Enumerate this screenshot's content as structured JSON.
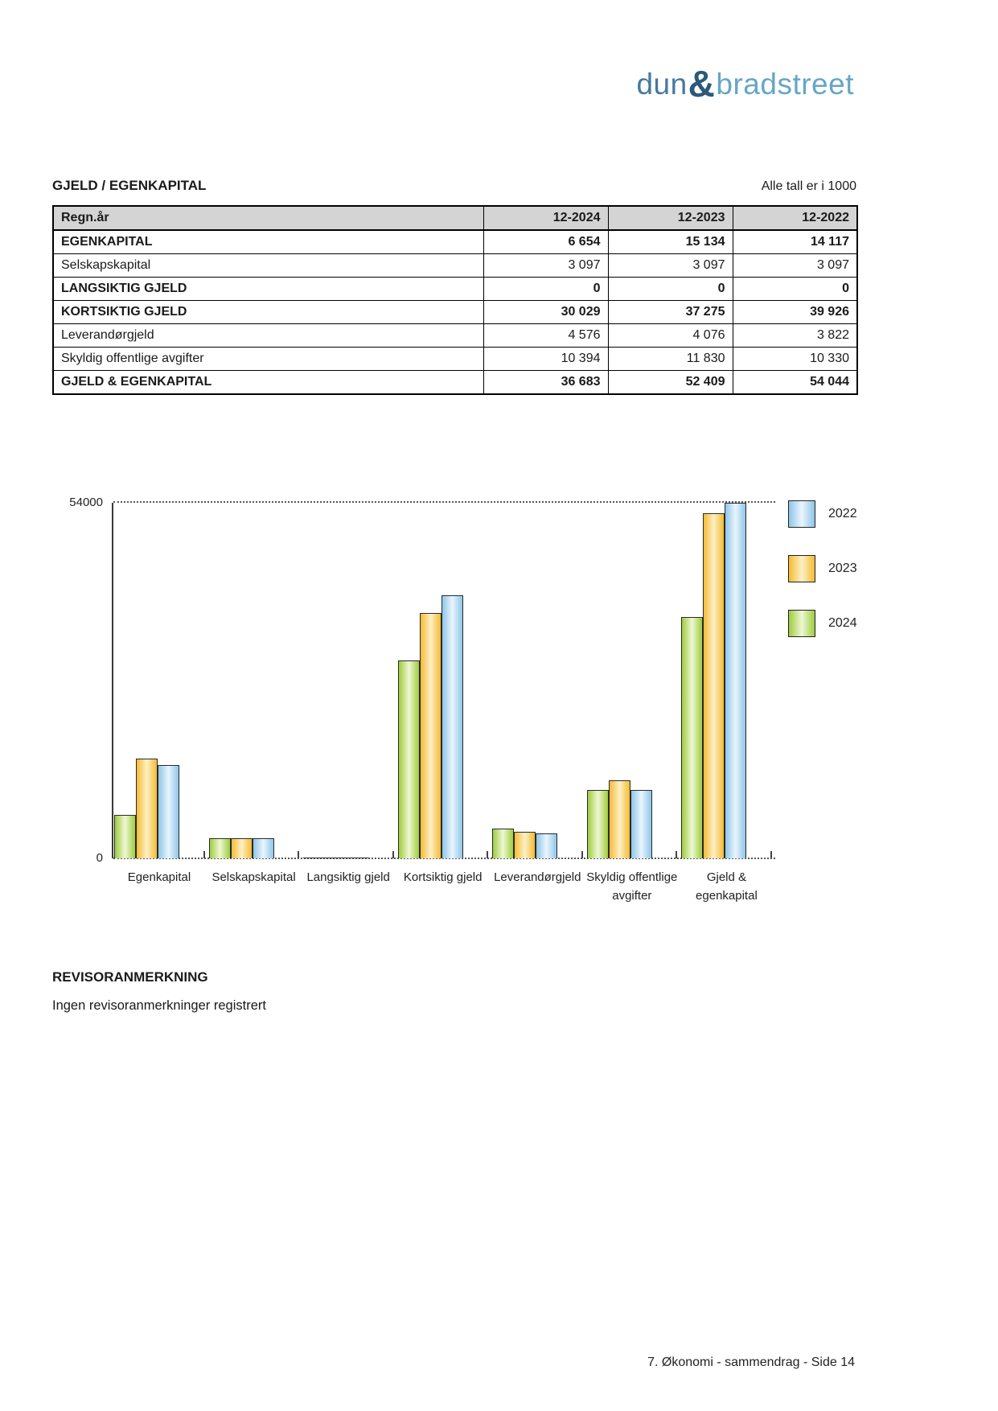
{
  "logo": {
    "part1": "dun",
    "amp": "&",
    "part2": "bradstreet",
    "color_part1": "#47789f",
    "color_amp": "#2b5a7a",
    "color_part2": "#66a6c6"
  },
  "section": {
    "title": "GJELD / EGENKAPITAL",
    "note": "Alle tall er i 1000"
  },
  "table": {
    "header": [
      "Regn.år",
      "12-2024",
      "12-2023",
      "12-2022"
    ],
    "rows": [
      {
        "label": "EGENKAPITAL",
        "bold": true,
        "values": [
          "6 654",
          "15 134",
          "14 117"
        ]
      },
      {
        "label": "Selskapskapital",
        "bold": false,
        "values": [
          "3 097",
          "3 097",
          "3 097"
        ]
      },
      {
        "label": "LANGSIKTIG GJELD",
        "bold": true,
        "values": [
          "0",
          "0",
          "0"
        ]
      },
      {
        "label": "KORTSIKTIG GJELD",
        "bold": true,
        "values": [
          "30 029",
          "37 275",
          "39 926"
        ]
      },
      {
        "label": "Leverandørgjeld",
        "bold": false,
        "values": [
          "4 576",
          "4 076",
          "3 822"
        ]
      },
      {
        "label": "Skyldig offentlige avgifter",
        "bold": false,
        "values": [
          "10 394",
          "11 830",
          "10 330"
        ]
      },
      {
        "label": "GJELD & EGENKAPITAL",
        "bold": true,
        "values": [
          "36 683",
          "52 409",
          "54 044"
        ]
      }
    ]
  },
  "chart_data": {
    "type": "bar",
    "title": "",
    "xlabel": "",
    "ylabel": "",
    "ylim": [
      0,
      54000
    ],
    "ytick_labels": [
      "0",
      "54000"
    ],
    "grid": "single dotted gridline at y=54000, dotted baseline at y=0",
    "legend_position": "right",
    "categories": [
      [
        "Egenkapital"
      ],
      [
        "Selskapskapital"
      ],
      [
        "Langsiktig gjeld"
      ],
      [
        "Kortsiktig gjeld"
      ],
      [
        "Leverandørgjeld"
      ],
      [
        "Skyldig offentlige",
        "avgifter"
      ],
      [
        "Gjeld &",
        "egenkapital"
      ]
    ],
    "series": [
      {
        "name": "2022",
        "edge_color": "#8ec6ea",
        "center_color": "#eaf5fd",
        "values": [
          14117,
          3097,
          0,
          39926,
          3822,
          10330,
          54044
        ]
      },
      {
        "name": "2023",
        "edge_color": "#f5bb32",
        "center_color": "#fdf0c6",
        "values": [
          15134,
          3097,
          0,
          37275,
          4076,
          11830,
          52409
        ]
      },
      {
        "name": "2024",
        "edge_color": "#9ecd3f",
        "center_color": "#eef7d3",
        "values": [
          6654,
          3097,
          0,
          30029,
          4576,
          10394,
          36683
        ]
      }
    ],
    "bar_order_left_to_right": [
      "2024",
      "2023",
      "2022"
    ],
    "legend_order_top_to_bottom": [
      "2022",
      "2023",
      "2024"
    ]
  },
  "revisor": {
    "heading": "REVISORANMERKNING",
    "body": "Ingen revisoranmerkninger registrert"
  },
  "footer": {
    "text": "7. Økonomi - sammendrag - Side 14"
  }
}
